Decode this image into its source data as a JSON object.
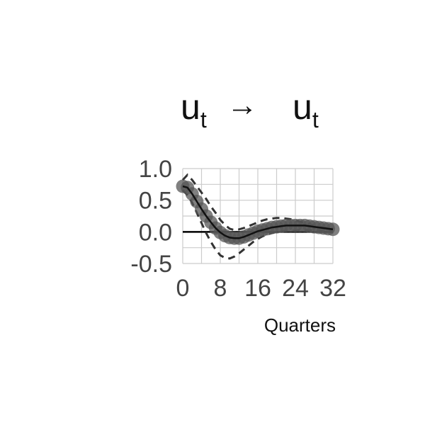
{
  "chart_data": {
    "type": "line",
    "title": {
      "left": "u",
      "left_sub": "t",
      "arrow": "→",
      "right": "u",
      "right_sub": "t"
    },
    "xlabel": "Quarters",
    "ylabel": "",
    "xlim": [
      0,
      32
    ],
    "ylim": [
      -0.5,
      1.0
    ],
    "xticks": [
      0,
      8,
      16,
      24,
      32
    ],
    "xtick_labels": [
      "0",
      "8",
      "16",
      "24",
      "32"
    ],
    "yticks": [
      1.0,
      0.5,
      0.0,
      -0.5
    ],
    "ytick_labels": [
      "1.0",
      "0.5",
      "0.0",
      "-0.5"
    ],
    "grid": true,
    "zero_line": true,
    "x": [
      0,
      1,
      2,
      3,
      4,
      5,
      6,
      7,
      8,
      9,
      10,
      11,
      12,
      13,
      14,
      15,
      16,
      17,
      18,
      19,
      20,
      21,
      22,
      23,
      24,
      25,
      26,
      27,
      28,
      29,
      30,
      31,
      32
    ],
    "series": [
      {
        "role": "response",
        "values": [
          0.72,
          0.7,
          0.6,
          0.48,
          0.36,
          0.25,
          0.15,
          0.06,
          -0.01,
          -0.06,
          -0.09,
          -0.1,
          -0.1,
          -0.08,
          -0.05,
          -0.02,
          0.01,
          0.03,
          0.05,
          0.07,
          0.08,
          0.09,
          0.1,
          0.1,
          0.1,
          0.1,
          0.1,
          0.09,
          0.08,
          0.07,
          0.06,
          0.05,
          0.04
        ],
        "color": "#111111"
      },
      {
        "role": "upper-band",
        "values": [
          0.82,
          0.9,
          0.82,
          0.72,
          0.62,
          0.52,
          0.4,
          0.3,
          0.19,
          0.11,
          0.05,
          0.03,
          0.04,
          0.06,
          0.09,
          0.12,
          0.15,
          0.18,
          0.2,
          0.21,
          0.22,
          0.22,
          0.21,
          0.2,
          0.18,
          0.16,
          0.14,
          0.12,
          0.1,
          0.08,
          0.07,
          0.06,
          0.05
        ],
        "color": "#333333",
        "dashed": true
      },
      {
        "role": "lower-band",
        "values": [
          0.66,
          0.58,
          0.46,
          0.3,
          0.14,
          -0.02,
          -0.16,
          -0.28,
          -0.37,
          -0.41,
          -0.42,
          -0.39,
          -0.34,
          -0.28,
          -0.22,
          -0.16,
          -0.11,
          -0.07,
          -0.04,
          -0.02,
          0.0,
          0.01,
          0.02,
          0.02,
          0.02,
          0.03,
          0.03,
          0.03,
          0.02,
          0.02,
          0.02,
          0.02,
          0.02
        ],
        "color": "#333333",
        "dashed": true
      }
    ],
    "colors": {
      "marker": "#555555",
      "line": "#111111",
      "band": "#333333",
      "grid": "#cccccc",
      "tick_text": "#444444"
    }
  }
}
